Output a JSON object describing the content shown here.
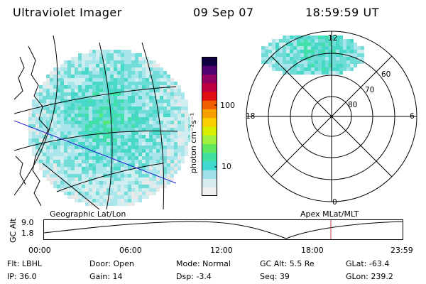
{
  "header": {
    "instrument": "Ultraviolet Imager",
    "date": "09 Sep 07",
    "time": "18:59:59 UT"
  },
  "colorbar": {
    "label": "photon cm⁻²s⁻¹",
    "ticks": [
      "100",
      "10"
    ],
    "colors": [
      "#f0f0f0",
      "#d8ecf0",
      "#a0e0e8",
      "#40d8d0",
      "#40e0a0",
      "#60e860",
      "#a0f040",
      "#d8f000",
      "#f8d000",
      "#f8a000",
      "#f06000",
      "#e01010",
      "#c00040",
      "#900060",
      "#500070",
      "#100040"
    ]
  },
  "geo_panel": {
    "label": "Geographic Lat/Lon"
  },
  "polar_panel": {
    "label": "Apex  MLat/MLT",
    "mlt_labels": [
      "12",
      "18",
      "6",
      "0"
    ],
    "lat_labels": [
      "60",
      "70",
      "80"
    ]
  },
  "timeline": {
    "ylabel": "GC Alt",
    "yticks": [
      "9.0",
      "1.8"
    ],
    "xticks": [
      "00:00",
      "06:00",
      "12:00",
      "18:00",
      "23:59"
    ],
    "marker_color": "#c04040"
  },
  "status": {
    "flt": "Flt: LBHL",
    "door": "Door: Open",
    "mode": "Mode: Normal",
    "gcalt": "GC Alt: 5.5 Re",
    "glat": "GLat: -63.4",
    "ip": "IP: 36.0",
    "gain": "Gain: 14",
    "dsp": "Dsp:    -3.4",
    "seq": "Seq: 39",
    "glon": "GLon: 239.2"
  }
}
